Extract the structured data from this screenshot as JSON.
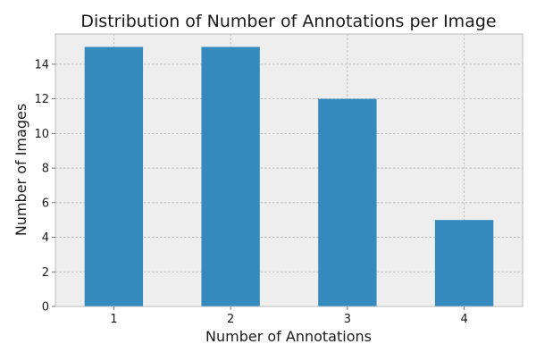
{
  "chart_data": {
    "type": "bar",
    "title": "Distribution of Number of Annotations per Image",
    "xlabel": "Number of Annotations",
    "ylabel": "Number of Images",
    "categories": [
      "1",
      "2",
      "3",
      "4"
    ],
    "values": [
      15,
      15,
      12,
      5
    ],
    "xticks": [
      "1",
      "2",
      "3",
      "4"
    ],
    "yticks": [
      0,
      2,
      4,
      6,
      8,
      10,
      12,
      14
    ],
    "ylim": [
      0,
      15.75
    ],
    "grid": true,
    "legend": "none",
    "bar_color": "#348ABD",
    "plot_background": "#EEEEEE",
    "grid_color": "#B2B2B2",
    "frame_color": "#BCBCBC"
  }
}
